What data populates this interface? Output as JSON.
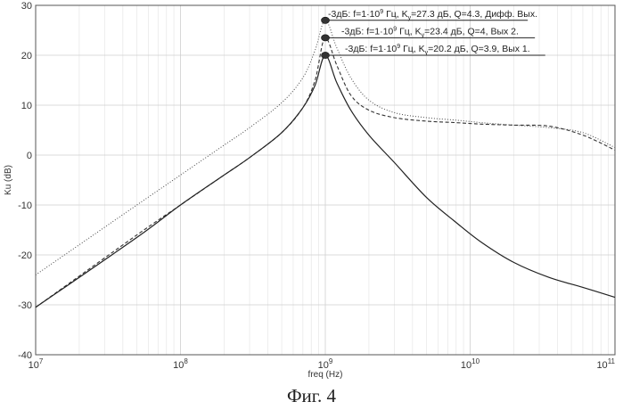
{
  "chart_data": {
    "type": "line",
    "xlabel": "freq (Hz)",
    "ylabel": "Ku (dB)",
    "x_scale": "log",
    "xlim": [
      10000000,
      100000000000
    ],
    "ylim": [
      -40,
      30
    ],
    "x_ticks": [
      {
        "value": 10000000,
        "base": "10",
        "exp": "7"
      },
      {
        "value": 100000000,
        "base": "10",
        "exp": "8"
      },
      {
        "value": 1000000000,
        "base": "10",
        "exp": "9"
      },
      {
        "value": 10000000000,
        "base": "10",
        "exp": "10"
      },
      {
        "value": 100000000000,
        "base": "10",
        "exp": "11"
      }
    ],
    "y_ticks": [
      -40,
      -30,
      -20,
      -10,
      0,
      10,
      20,
      30
    ],
    "grid": true,
    "series": [
      {
        "name": "Дифф. Вых.",
        "style": "dotted",
        "color": "#444444",
        "x": [
          10000000,
          50000000,
          100000000,
          200000000,
          300000000,
          500000000,
          700000000,
          850000000,
          1000000000,
          1200000000,
          1500000000,
          2000000000,
          3000000000,
          5000000000,
          8000000000,
          12000000000,
          20000000000,
          35000000000,
          60000000000,
          100000000000
        ],
        "y": [
          -24,
          -10,
          -4,
          2,
          5.5,
          10.5,
          15.5,
          21,
          27,
          21.5,
          15.5,
          11,
          8.5,
          7.5,
          7,
          6.5,
          6,
          5.5,
          4.5,
          1.5
        ]
      },
      {
        "name": "Вых 2.",
        "style": "dashed",
        "color": "#333333",
        "x": [
          10000000,
          50000000,
          100000000,
          200000000,
          300000000,
          500000000,
          700000000,
          850000000,
          1000000000,
          1200000000,
          1500000000,
          2000000000,
          3000000000,
          5000000000,
          8000000000,
          12000000000,
          20000000000,
          35000000000,
          60000000000,
          100000000000
        ],
        "y": [
          -30.5,
          -16,
          -10,
          -4,
          -0.5,
          4.5,
          9.5,
          15,
          23.5,
          18,
          12,
          9,
          7.5,
          6.8,
          6.5,
          6.2,
          6,
          5.8,
          4,
          1
        ]
      },
      {
        "name": "Вых 1.",
        "style": "solid",
        "color": "#222222",
        "x": [
          10000000,
          50000000,
          100000000,
          200000000,
          300000000,
          500000000,
          700000000,
          850000000,
          1000000000,
          1200000000,
          1500000000,
          2000000000,
          3000000000,
          5000000000,
          8000000000,
          12000000000,
          20000000000,
          35000000000,
          60000000000,
          100000000000
        ],
        "y": [
          -30.5,
          -16.5,
          -10,
          -4,
          -0.5,
          4.5,
          9.5,
          14,
          20,
          14.5,
          9,
          4,
          -1.5,
          -8.5,
          -13.5,
          -17.5,
          -21.5,
          -24.5,
          -26.5,
          -28.5
        ]
      }
    ],
    "markers": [
      {
        "x": 1000000000,
        "y": 27,
        "label_x": 25000000000
      },
      {
        "x": 1000000000,
        "y": 23.5,
        "label_x": 28000000000
      },
      {
        "x": 1000000000,
        "y": 20,
        "label_x": 33000000000
      }
    ],
    "annotations": [
      {
        "pre": "-3дБ: f=1·10",
        "sup": "9",
        "mid": " Гц, K",
        "sub": "y",
        "post": "=27.3 дБ, Q=4.3, Дифф. Вых."
      },
      {
        "pre": "-3дБ: f=1·10",
        "sup": "9",
        "mid": " Гц, K",
        "sub": "y",
        "post": "=23.4 дБ, Q=4, Вых 2."
      },
      {
        "pre": "-3дБ: f=1·10",
        "sup": "9",
        "mid": " Гц, K",
        "sub": "y",
        "post": "=20.2 дБ, Q=3.9, Вых 1."
      }
    ],
    "caption": "Фиг. 4"
  }
}
